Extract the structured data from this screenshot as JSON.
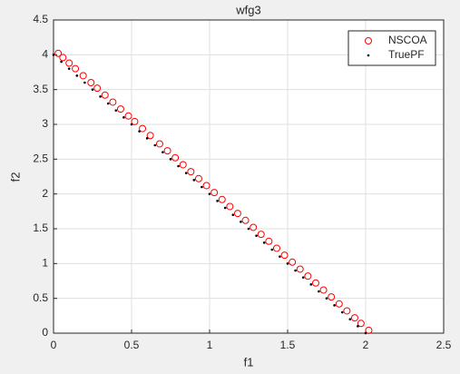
{
  "chart_data": {
    "type": "scatter",
    "title": "wfg3",
    "x_label": "f1",
    "y_label": "f2",
    "xlim": [
      0,
      2.5
    ],
    "xticks": [
      0,
      0.5,
      1,
      1.5,
      2,
      2.5
    ],
    "ylim": [
      0,
      4.5
    ],
    "yticks": [
      0,
      0.5,
      1,
      1.5,
      2,
      2.5,
      3,
      3.5,
      4,
      4.5
    ],
    "grid": true,
    "legend": "northeast",
    "series": [
      {
        "name": "NSCOA",
        "color": "#ff0000",
        "marker": "o",
        "x": [
          0.03,
          0.06,
          0.1,
          0.14,
          0.19,
          0.24,
          0.28,
          0.33,
          0.38,
          0.43,
          0.48,
          0.52,
          0.57,
          0.62,
          0.68,
          0.73,
          0.78,
          0.83,
          0.88,
          0.93,
          0.98,
          1.03,
          1.08,
          1.13,
          1.18,
          1.23,
          1.28,
          1.33,
          1.38,
          1.43,
          1.48,
          1.53,
          1.58,
          1.63,
          1.68,
          1.73,
          1.78,
          1.83,
          1.88,
          1.93,
          1.97,
          2.02
        ],
        "values": [
          4.02,
          3.96,
          3.88,
          3.8,
          3.7,
          3.6,
          3.52,
          3.42,
          3.32,
          3.22,
          3.12,
          3.04,
          2.94,
          2.84,
          2.72,
          2.62,
          2.52,
          2.42,
          2.32,
          2.22,
          2.12,
          2.02,
          1.92,
          1.82,
          1.72,
          1.62,
          1.52,
          1.42,
          1.32,
          1.22,
          1.12,
          1.02,
          0.92,
          0.82,
          0.72,
          0.62,
          0.52,
          0.42,
          0.32,
          0.22,
          0.14,
          0.04
        ]
      },
      {
        "name": "TruePF",
        "color": "#000000",
        "marker": ".",
        "x": [
          0,
          0.05,
          0.1,
          0.15,
          0.2,
          0.25,
          0.3,
          0.35,
          0.4,
          0.45,
          0.5,
          0.55,
          0.6,
          0.65,
          0.7,
          0.75,
          0.8,
          0.85,
          0.9,
          0.95,
          1,
          1.05,
          1.1,
          1.15,
          1.2,
          1.25,
          1.3,
          1.35,
          1.4,
          1.45,
          1.5,
          1.55,
          1.6,
          1.65,
          1.7,
          1.75,
          1.8,
          1.85,
          1.9,
          1.95,
          2
        ],
        "values": [
          4,
          3.9,
          3.8,
          3.7,
          3.6,
          3.5,
          3.4,
          3.3,
          3.2,
          3.1,
          3,
          2.9,
          2.8,
          2.7,
          2.6,
          2.5,
          2.4,
          2.3,
          2.2,
          2.1,
          2,
          1.9,
          1.8,
          1.7,
          1.6,
          1.5,
          1.4,
          1.3,
          1.2,
          1.1,
          1,
          0.9,
          0.8,
          0.7,
          0.6,
          0.5,
          0.4,
          0.3,
          0.2,
          0.1,
          0
        ]
      }
    ]
  }
}
